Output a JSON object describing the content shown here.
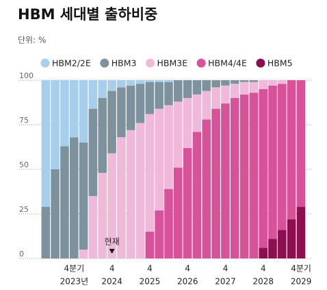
{
  "chart_data": {
    "type": "stacked-bar",
    "title": "HBM 세대별 출하비중",
    "subtitle": "단위: %",
    "categories": [
      null,
      null,
      null,
      "4분기",
      null,
      null,
      null,
      "4",
      null,
      null,
      null,
      "4",
      null,
      null,
      null,
      "4",
      null,
      null,
      null,
      "4",
      null,
      null,
      null,
      "4",
      null,
      null,
      null,
      "4분기"
    ],
    "years": [
      null,
      null,
      null,
      "2023년",
      null,
      null,
      null,
      "2024",
      null,
      null,
      null,
      "2025",
      null,
      null,
      null,
      "2026",
      null,
      null,
      null,
      "2027",
      null,
      null,
      null,
      "2028",
      null,
      null,
      null,
      "2029"
    ],
    "annotation": "현재",
    "series": [
      {
        "name": "HBM5",
        "color": "#8c0f4f",
        "values": [
          0,
          0,
          0,
          0,
          0,
          0,
          0,
          0,
          0,
          0,
          0,
          0,
          0,
          0,
          0,
          0,
          0,
          0,
          0,
          0,
          0,
          0,
          0,
          6,
          11,
          16,
          22,
          29
        ]
      },
      {
        "name": "HBM4/4E",
        "color": "#d8529a",
        "values": [
          0,
          0,
          0,
          0,
          0,
          0,
          0,
          0,
          0,
          0,
          0,
          15,
          27,
          39,
          51,
          62,
          71,
          78,
          84,
          87,
          90,
          92,
          93,
          89,
          86,
          82,
          78,
          71
        ]
      },
      {
        "name": "HBM3E",
        "color": "#f1b9d9",
        "values": [
          0,
          0,
          0,
          0,
          5,
          35,
          48,
          59,
          68,
          72,
          76,
          66,
          57,
          47,
          37,
          28,
          21,
          16,
          12,
          10,
          8,
          7,
          6,
          5,
          3,
          2,
          0,
          0
        ]
      },
      {
        "name": "HBM3",
        "color": "#7e929e",
        "values": [
          29,
          50,
          63,
          68,
          60,
          49,
          42,
          35,
          28,
          25,
          22,
          18,
          15,
          13,
          12,
          10,
          8,
          6,
          4,
          3,
          2,
          1,
          1,
          0,
          0,
          0,
          0,
          0
        ]
      },
      {
        "name": "HBM2/2E",
        "color": "#a7cfec",
        "values": [
          71,
          50,
          37,
          32,
          35,
          16,
          10,
          6,
          4,
          3,
          2,
          1,
          1,
          1,
          0,
          0,
          0,
          0,
          0,
          0,
          0,
          0,
          0,
          0,
          0,
          0,
          0,
          0
        ]
      }
    ],
    "legend_order": [
      4,
      3,
      2,
      1,
      0
    ],
    "ylim": [
      0,
      100
    ],
    "yticks": [
      0,
      25,
      50,
      75,
      100
    ],
    "grid": true
  }
}
